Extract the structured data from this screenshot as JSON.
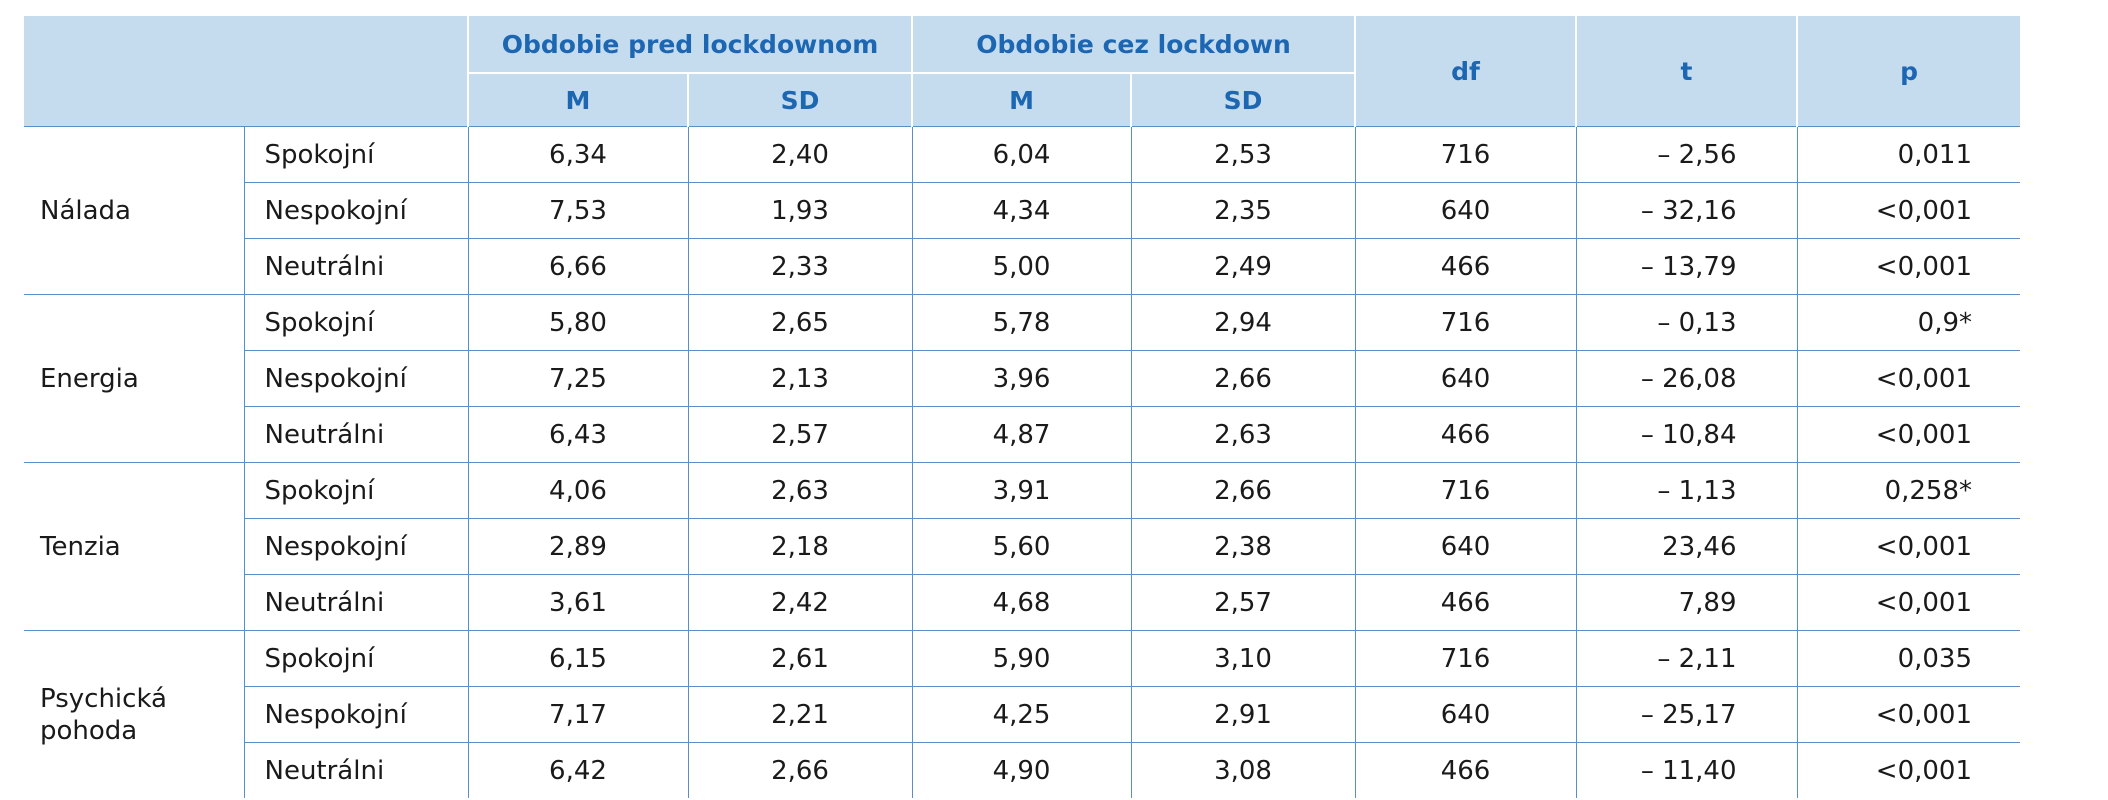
{
  "header": {
    "group_before": "Obdobie pred lockdownom",
    "group_during": "Obdobie cez lockdown",
    "sub_m": "M",
    "sub_sd": "SD",
    "df": "df",
    "t": "t",
    "p": "p"
  },
  "groups": [
    {
      "label": "Nálada",
      "rows": [
        {
          "label": "Spokojní",
          "m_before": "6,34",
          "sd_before": "2,40",
          "m_during": "6,04",
          "sd_during": "2,53",
          "df": "716",
          "t": "– 2,56",
          "p": "0,011"
        },
        {
          "label": "Nespokojní",
          "m_before": "7,53",
          "sd_before": "1,93",
          "m_during": "4,34",
          "sd_during": "2,35",
          "df": "640",
          "t": "– 32,16",
          "p": "<0,001"
        },
        {
          "label": "Neutrálni",
          "m_before": "6,66",
          "sd_before": "2,33",
          "m_during": "5,00",
          "sd_during": "2,49",
          "df": "466",
          "t": "– 13,79",
          "p": "<0,001"
        }
      ]
    },
    {
      "label": "Energia",
      "rows": [
        {
          "label": "Spokojní",
          "m_before": "5,80",
          "sd_before": "2,65",
          "m_during": "5,78",
          "sd_during": "2,94",
          "df": "716",
          "t": "– 0,13",
          "p": "0,9*"
        },
        {
          "label": "Nespokojní",
          "m_before": "7,25",
          "sd_before": "2,13",
          "m_during": "3,96",
          "sd_during": "2,66",
          "df": "640",
          "t": "– 26,08",
          "p": "<0,001"
        },
        {
          "label": "Neutrálni",
          "m_before": "6,43",
          "sd_before": "2,57",
          "m_during": "4,87",
          "sd_during": "2,63",
          "df": "466",
          "t": "– 10,84",
          "p": "<0,001"
        }
      ]
    },
    {
      "label": "Tenzia",
      "rows": [
        {
          "label": "Spokojní",
          "m_before": "4,06",
          "sd_before": "2,63",
          "m_during": "3,91",
          "sd_during": "2,66",
          "df": "716",
          "t": "– 1,13",
          "p": "0,258*"
        },
        {
          "label": "Nespokojní",
          "m_before": "2,89",
          "sd_before": "2,18",
          "m_during": "5,60",
          "sd_during": "2,38",
          "df": "640",
          "t": "23,46",
          "p": "<0,001"
        },
        {
          "label": "Neutrálni",
          "m_before": "3,61",
          "sd_before": "2,42",
          "m_during": "4,68",
          "sd_during": "2,57",
          "df": "466",
          "t": "7,89",
          "p": "<0,001"
        }
      ]
    },
    {
      "label": "Psychická pohoda",
      "rows": [
        {
          "label": "Spokojní",
          "m_before": "6,15",
          "sd_before": "2,61",
          "m_during": "5,90",
          "sd_during": "3,10",
          "df": "716",
          "t": "– 2,11",
          "p": "0,035"
        },
        {
          "label": "Nespokojní",
          "m_before": "7,17",
          "sd_before": "2,21",
          "m_during": "4,25",
          "sd_during": "2,91",
          "df": "640",
          "t": "– 25,17",
          "p": "<0,001"
        },
        {
          "label": "Neutrálni",
          "m_before": "6,42",
          "sd_before": "2,66",
          "m_during": "4,90",
          "sd_during": "3,08",
          "df": "466",
          "t": "– 11,40",
          "p": "<0,001"
        }
      ]
    }
  ],
  "colors": {
    "header_bg": "#c5dcee",
    "header_text": "#1d66b2",
    "rule": "#5a8ec7"
  }
}
